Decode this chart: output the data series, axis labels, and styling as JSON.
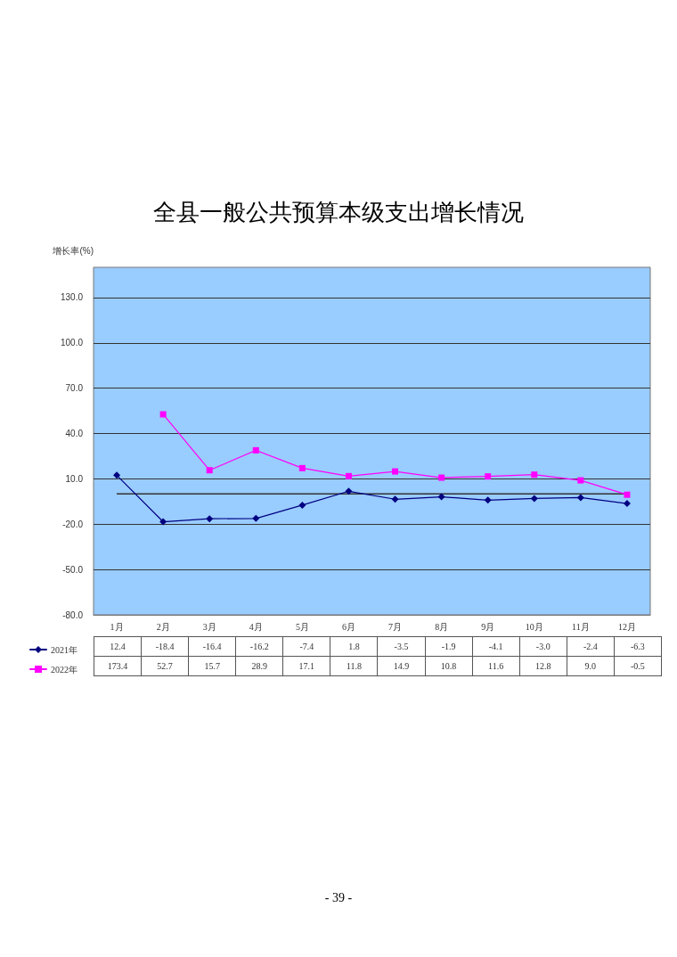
{
  "chart_data": {
    "type": "line",
    "title": "全县一般公共预算本级支出增长情况",
    "ylabel": "增长率(%)",
    "categories": [
      "1月",
      "2月",
      "3月",
      "4月",
      "5月",
      "6月",
      "7月",
      "8月",
      "9月",
      "10月",
      "11月",
      "12月"
    ],
    "series": [
      {
        "name": "2021年",
        "color": "#000080",
        "marker": "diamond",
        "values": [
          12.4,
          -18.4,
          -16.4,
          -16.2,
          -7.4,
          1.8,
          -3.5,
          -1.9,
          -4.1,
          -3.0,
          -2.4,
          -6.3
        ],
        "value_labels": [
          "12.4",
          "-18.4",
          "-16.4",
          "-16.2",
          "-7.4",
          "1.8",
          "-3.5",
          "-1.9",
          "-4.1",
          "-3.0",
          "-2.4",
          "-6.3"
        ]
      },
      {
        "name": "2022年",
        "color": "#ff00ff",
        "marker": "square",
        "values": [
          null,
          52.7,
          15.7,
          28.9,
          17.1,
          11.8,
          14.9,
          10.8,
          11.6,
          12.8,
          9.0,
          -0.5
        ],
        "value_labels": [
          "173.4",
          "52.7",
          "15.7",
          "28.9",
          "17.1",
          "11.8",
          "14.9",
          "10.8",
          "11.6",
          "12.8",
          "9.0",
          "-0.5"
        ]
      }
    ],
    "ylim": [
      -80,
      150
    ],
    "yticks": [
      {
        "value": -80,
        "label": "-80.0"
      },
      {
        "value": -50,
        "label": "-50.0"
      },
      {
        "value": -20,
        "label": "-20.0"
      },
      {
        "value": 10,
        "label": "10.0"
      },
      {
        "value": 40,
        "label": "40.0"
      },
      {
        "value": 70,
        "label": "70.0"
      },
      {
        "value": 100,
        "label": "100.0"
      },
      {
        "value": 130,
        "label": "130.0"
      }
    ],
    "ref_lines": [
      {
        "axis": "y",
        "value": 0,
        "color": "#333333"
      }
    ],
    "grid": "y",
    "legend": "bottom left",
    "annotations": [
      "- 39 -"
    ]
  }
}
